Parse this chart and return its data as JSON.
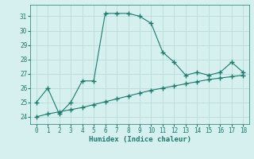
{
  "line1_x": [
    0,
    1,
    2,
    3,
    4,
    5,
    6,
    7,
    8,
    9,
    10,
    11,
    12,
    13,
    14,
    15,
    16,
    17,
    18
  ],
  "line1_y": [
    25.0,
    26.0,
    24.2,
    25.0,
    26.5,
    26.5,
    31.2,
    31.2,
    31.2,
    31.0,
    30.5,
    28.5,
    27.8,
    26.9,
    27.1,
    26.9,
    27.1,
    27.8,
    27.1
  ],
  "line2_x": [
    0,
    1,
    2,
    3,
    4,
    5,
    6,
    7,
    8,
    9,
    10,
    11,
    12,
    13,
    14,
    15,
    16,
    17,
    18
  ],
  "line2_y": [
    24.0,
    24.2,
    24.35,
    24.5,
    24.65,
    24.85,
    25.05,
    25.25,
    25.45,
    25.65,
    25.85,
    26.0,
    26.15,
    26.3,
    26.45,
    26.6,
    26.7,
    26.8,
    26.9
  ],
  "line_color": "#1a7a6e",
  "bg_color": "#d6f0ef",
  "grid_color": "#b8dbd9",
  "xlabel": "Humidex (Indice chaleur)",
  "xlim": [
    -0.5,
    18.5
  ],
  "ylim": [
    23.5,
    31.8
  ],
  "yticks": [
    24,
    25,
    26,
    27,
    28,
    29,
    30,
    31
  ],
  "xticks": [
    0,
    1,
    2,
    3,
    4,
    5,
    6,
    7,
    8,
    9,
    10,
    11,
    12,
    13,
    14,
    15,
    16,
    17,
    18
  ],
  "tick_fontsize": 5.5,
  "xlabel_fontsize": 6.5,
  "marker": "+",
  "markersize": 4,
  "linewidth": 0.8
}
